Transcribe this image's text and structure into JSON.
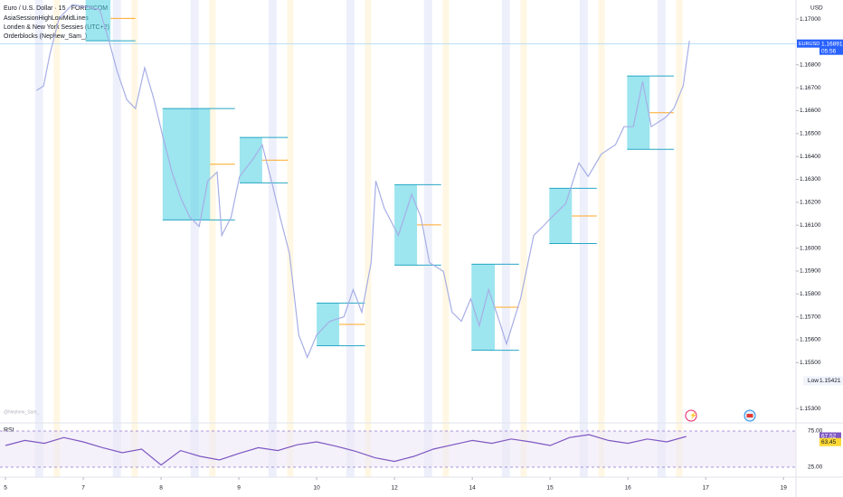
{
  "chart_data": [
    {
      "type": "line",
      "title": "Euro / U.S. Dollar · 15 · FOREXCOM",
      "indicators": [
        "AsiaSessionHighLowMidLines",
        "Londen & New York Sessies (UTC+2)",
        "Orderblocks (Nephew_Sam_)"
      ],
      "watermark": "@Nephew_Sam_",
      "currency": "USD",
      "symbol": "EURUSD",
      "last": 1.16891,
      "countdown": "05:56",
      "low_label": "Low",
      "low": 1.15421,
      "xlim": [
        -0.07,
        10.16
      ],
      "xticks": [
        {
          "value": 0,
          "label": "5"
        },
        {
          "value": 1,
          "label": "7"
        },
        {
          "value": 2,
          "label": "8"
        },
        {
          "value": 3,
          "label": "9"
        },
        {
          "value": 4,
          "label": "10"
        },
        {
          "value": 5,
          "label": "12"
        },
        {
          "value": 6,
          "label": "14"
        },
        {
          "value": 7,
          "label": "15"
        },
        {
          "value": 8,
          "label": "16"
        },
        {
          "value": 9,
          "label": "17"
        },
        {
          "value": 10,
          "label": "19"
        }
      ],
      "ylim": [
        1.15245,
        1.17083
      ],
      "yticks": [
        {
          "value": 1.17,
          "label": "1.17000"
        },
        {
          "value": 1.168,
          "label": "1.16800"
        },
        {
          "value": 1.167,
          "label": "1.16700"
        },
        {
          "value": 1.166,
          "label": "1.16600"
        },
        {
          "value": 1.165,
          "label": "1.16500"
        },
        {
          "value": 1.164,
          "label": "1.16400"
        },
        {
          "value": 1.163,
          "label": "1.16300"
        },
        {
          "value": 1.162,
          "label": "1.16200"
        },
        {
          "value": 1.161,
          "label": "1.16100"
        },
        {
          "value": 1.16,
          "label": "1.16000"
        },
        {
          "value": 1.159,
          "label": "1.15900"
        },
        {
          "value": 1.158,
          "label": "1.15800"
        },
        {
          "value": 1.157,
          "label": "1.15700"
        },
        {
          "value": 1.156,
          "label": "1.15600"
        },
        {
          "value": 1.155,
          "label": "1.15500"
        },
        {
          "value": 1.153,
          "label": "1.15300"
        }
      ],
      "series": [
        {
          "color": "#a7aee6",
          "x": [
            0.4,
            0.49,
            0.57,
            0.69,
            0.86,
            1.21,
            1.33,
            1.44,
            1.56,
            1.67,
            1.79,
            1.91,
            2.02,
            2.14,
            2.26,
            2.37,
            2.49,
            2.6,
            2.72,
            2.78,
            2.9,
            3.01,
            3.19,
            3.3,
            3.42,
            3.53,
            3.65,
            3.77,
            3.88,
            4.0,
            4.17,
            4.35,
            4.47,
            4.58,
            4.7,
            4.76,
            4.87,
            5.05,
            5.22,
            5.34,
            5.45,
            5.63,
            5.74,
            5.86,
            5.98,
            6.09,
            6.21,
            6.33,
            6.44,
            6.62,
            6.79,
            6.91,
            7.02,
            7.2,
            7.37,
            7.49,
            7.66,
            7.84,
            7.95,
            8.07,
            8.19,
            8.3,
            8.48,
            8.59,
            8.71,
            8.79
          ],
          "values": [
            1.16688,
            1.16708,
            1.16846,
            1.17004,
            1.17063,
            1.17043,
            1.16905,
            1.16767,
            1.16648,
            1.16609,
            1.16787,
            1.16648,
            1.1649,
            1.16332,
            1.16214,
            1.16135,
            1.16095,
            1.16293,
            1.16332,
            1.16056,
            1.16135,
            1.16313,
            1.16392,
            1.16451,
            1.16293,
            1.16135,
            1.15977,
            1.15621,
            1.15523,
            1.15621,
            1.15681,
            1.157,
            1.15819,
            1.1572,
            1.15937,
            1.16293,
            1.16174,
            1.16056,
            1.16234,
            1.16135,
            1.15937,
            1.15898,
            1.1572,
            1.15681,
            1.15779,
            1.15661,
            1.15819,
            1.157,
            1.15582,
            1.15779,
            1.16056,
            1.16095,
            1.16135,
            1.16194,
            1.16372,
            1.16313,
            1.16411,
            1.16451,
            1.1653,
            1.1653,
            1.16727,
            1.1653,
            1.16569,
            1.16609,
            1.16708,
            1.16905
          ]
        }
      ],
      "order_blocks": [
        {
          "start": 1.03,
          "end": 1.35,
          "extend": 1.67,
          "high": 1.171,
          "low": 1.16905
        },
        {
          "start": 2.02,
          "end": 2.63,
          "extend": 2.95,
          "high": 1.16609,
          "low": 1.16123
        },
        {
          "start": 3.01,
          "end": 3.3,
          "extend": 3.63,
          "high": 1.16483,
          "low": 1.16285
        },
        {
          "start": 4.0,
          "end": 4.29,
          "extend": 4.62,
          "high": 1.1576,
          "low": 1.15574
        },
        {
          "start": 5.0,
          "end": 5.29,
          "extend": 5.6,
          "high": 1.16277,
          "low": 1.15926
        },
        {
          "start": 5.99,
          "end": 6.29,
          "extend": 6.6,
          "high": 1.1593,
          "low": 1.15554
        },
        {
          "start": 6.99,
          "end": 7.28,
          "extend": 7.6,
          "high": 1.16261,
          "low": 1.1602
        },
        {
          "start": 7.99,
          "end": 8.28,
          "extend": 8.59,
          "high": 1.16751,
          "low": 1.16431
        }
      ]
    },
    {
      "type": "line",
      "title": "RSI",
      "ylim": [
        15,
        83.75
      ],
      "yticks": [
        {
          "value": 75,
          "label": "75.00"
        },
        {
          "value": 25,
          "label": "25.00"
        }
      ],
      "rsi_last": 67.52,
      "ma_last": 63.45,
      "series": [
        {
          "color": "#7e57c2",
          "x": [
            0,
            0.25,
            0.5,
            0.75,
            1,
            1.25,
            1.5,
            1.75,
            2,
            2.25,
            2.5,
            2.75,
            3,
            3.25,
            3.5,
            3.75,
            4,
            4.25,
            4.5,
            4.75,
            5,
            5.25,
            5.5,
            5.75,
            6,
            6.25,
            6.5,
            6.75,
            7,
            7.25,
            7.5,
            7.75,
            8,
            8.25,
            8.5,
            8.75
          ],
          "values": [
            55,
            62,
            58,
            66,
            60,
            52,
            45,
            50,
            28,
            48,
            40,
            35,
            44,
            52,
            48,
            56,
            60,
            54,
            47,
            38,
            33,
            40,
            50,
            56,
            62,
            58,
            64,
            60,
            55,
            66,
            70,
            62,
            58,
            64,
            60,
            67.52
          ]
        }
      ]
    }
  ]
}
